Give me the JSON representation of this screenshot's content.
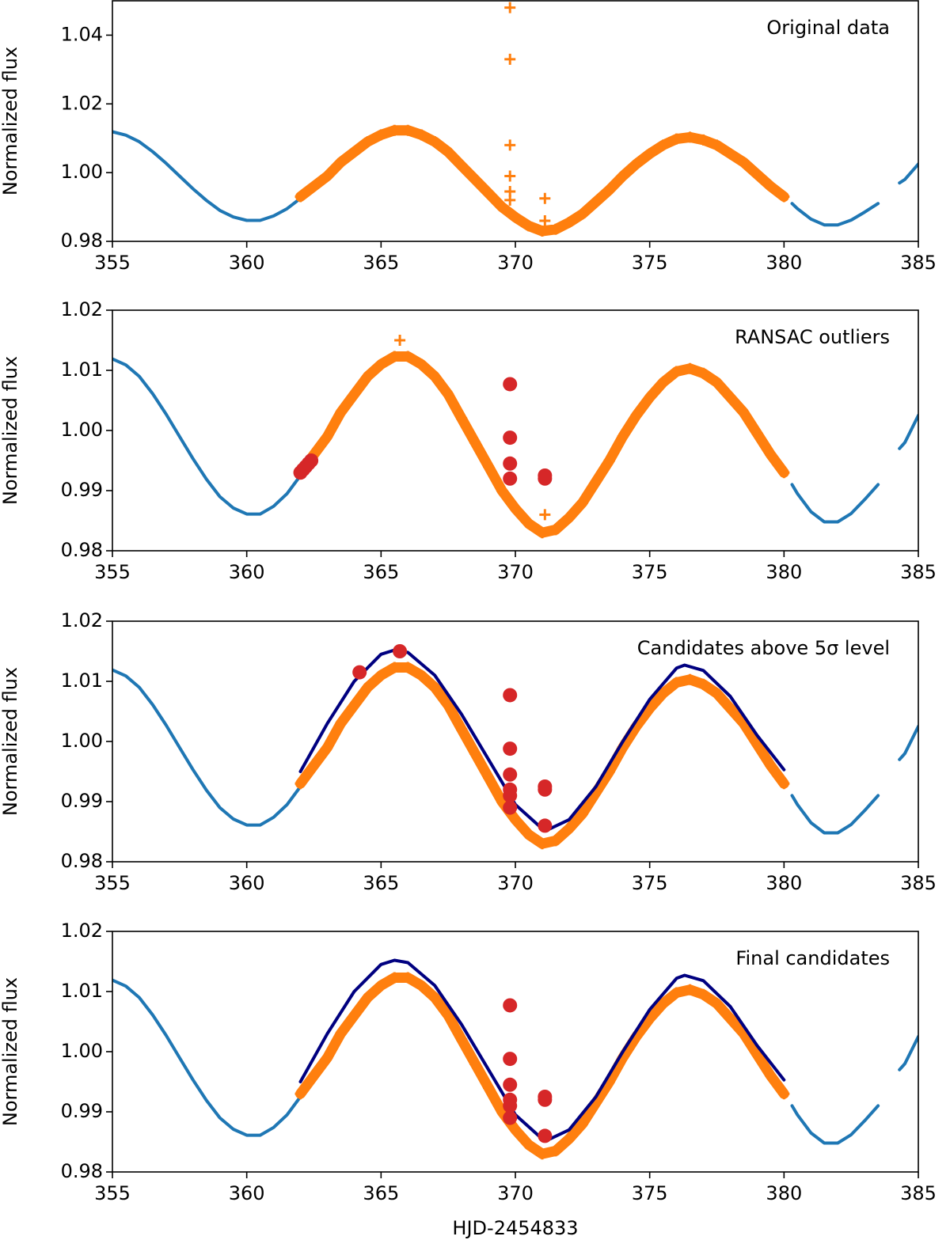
{
  "chart_data": [
    {
      "type": "scatter",
      "title": "Original data",
      "y_label": "Normalized flux",
      "xlim": [
        355,
        385
      ],
      "xticks": [
        355,
        360,
        365,
        370,
        375,
        380,
        385
      ],
      "ylim": [
        0.98,
        1.05
      ],
      "yticks": [
        0.98,
        {
          "value": 1.0,
          "label": "1.00"
        },
        1.02,
        1.04
      ],
      "series": [
        {
          "color": "#1f77b4",
          "marker": "dot",
          "x": [
            355,
            355.5,
            356,
            356.5,
            357,
            357.5,
            358,
            358.5,
            359,
            359.5,
            360,
            360.5,
            361,
            361.5,
            362
          ],
          "values": [
            1.0119,
            1.0109,
            1.009,
            1.0061,
            1.0027,
            0.999,
            0.9953,
            0.9919,
            0.989,
            0.9871,
            0.9861,
            0.9861,
            0.9874,
            0.9895,
            0.9925
          ]
        },
        {
          "color": "#1f77b4",
          "marker": "dot",
          "x": [
            380.3,
            380.5,
            381,
            381.5,
            382,
            382.5,
            383,
            383.5
          ],
          "values": [
            0.991,
            0.9895,
            0.9865,
            0.9848,
            0.9848,
            0.9862,
            0.9885,
            0.991
          ]
        },
        {
          "color": "#1f77b4",
          "marker": "dot",
          "x": [
            384.3,
            384.5,
            385
          ],
          "values": [
            0.997,
            0.998,
            1.0025
          ]
        },
        {
          "color": "#ff7f0e",
          "marker": "plus",
          "x": [
            362,
            362.5,
            363,
            363.5,
            364,
            364.5,
            365,
            365.5,
            366,
            366.5,
            367,
            367.5,
            368,
            368.5,
            369,
            369.5,
            370,
            370.5,
            371,
            371.5,
            372,
            372.5,
            373,
            373.5,
            374,
            374.5,
            375,
            375.5,
            376,
            376.5,
            377,
            377.5,
            378,
            378.5,
            379,
            379.5,
            380
          ],
          "values": [
            0.993,
            0.996,
            0.999,
            1.003,
            1.006,
            1.009,
            1.011,
            1.0123,
            1.0123,
            1.011,
            1.009,
            1.006,
            1.002,
            0.998,
            0.994,
            0.99,
            0.987,
            0.9845,
            0.983,
            0.9835,
            0.9855,
            0.988,
            0.9915,
            0.995,
            0.999,
            1.0025,
            1.0055,
            1.008,
            1.0098,
            1.0103,
            1.0095,
            1.008,
            1.0055,
            1.003,
            0.9995,
            0.996,
            0.993
          ]
        },
        {
          "color": "#ff7f0e",
          "marker": "plus",
          "x": [
            369.8,
            369.8,
            369.8,
            369.8,
            369.8,
            369.8
          ],
          "values": [
            1.048,
            1.033,
            1.008,
            0.999,
            0.9945,
            0.992
          ]
        },
        {
          "color": "#ff7f0e",
          "marker": "plus",
          "x": [
            371.1,
            371.1
          ],
          "values": [
            0.9925,
            0.986
          ]
        }
      ]
    },
    {
      "type": "scatter",
      "title": "RANSAC outliers",
      "y_label": "Normalized flux",
      "xlim": [
        355,
        385
      ],
      "xticks": [
        355,
        360,
        365,
        370,
        375,
        380,
        385
      ],
      "ylim": [
        0.98,
        1.02
      ],
      "yticks": [
        0.98,
        0.99,
        {
          "value": 1.0,
          "label": "1.00"
        },
        1.01,
        1.02
      ],
      "series": [
        {
          "color": "#1f77b4",
          "marker": "dot",
          "x": [
            355,
            355.5,
            356,
            356.5,
            357,
            357.5,
            358,
            358.5,
            359,
            359.5,
            360,
            360.5,
            361,
            361.5,
            362
          ],
          "values": [
            1.0119,
            1.0109,
            1.009,
            1.0061,
            1.0027,
            0.999,
            0.9953,
            0.9919,
            0.989,
            0.9871,
            0.9861,
            0.9861,
            0.9874,
            0.9895,
            0.9925
          ]
        },
        {
          "color": "#1f77b4",
          "marker": "dot",
          "x": [
            380.3,
            380.5,
            381,
            381.5,
            382,
            382.5,
            383,
            383.5
          ],
          "values": [
            0.991,
            0.9895,
            0.9865,
            0.9848,
            0.9848,
            0.9862,
            0.9885,
            0.991
          ]
        },
        {
          "color": "#1f77b4",
          "marker": "dot",
          "x": [
            384.3,
            384.5,
            385
          ],
          "values": [
            0.997,
            0.998,
            1.0025
          ]
        },
        {
          "color": "#ff7f0e",
          "marker": "plus",
          "x": [
            362,
            362.5,
            363,
            363.5,
            364,
            364.5,
            365,
            365.5,
            366,
            366.5,
            367,
            367.5,
            368,
            368.5,
            369,
            369.5,
            370,
            370.5,
            371,
            371.5,
            372,
            372.5,
            373,
            373.5,
            374,
            374.5,
            375,
            375.5,
            376,
            376.5,
            377,
            377.5,
            378,
            378.5,
            379,
            379.5,
            380
          ],
          "values": [
            0.993,
            0.996,
            0.999,
            1.003,
            1.006,
            1.009,
            1.011,
            1.0123,
            1.0123,
            1.011,
            1.009,
            1.006,
            1.002,
            0.998,
            0.994,
            0.99,
            0.987,
            0.9845,
            0.983,
            0.9835,
            0.9855,
            0.988,
            0.9915,
            0.995,
            0.999,
            1.0025,
            1.0055,
            1.008,
            1.0098,
            1.0103,
            1.0095,
            1.008,
            1.0055,
            1.003,
            0.9995,
            0.996,
            0.993
          ]
        },
        {
          "color": "#ff7f0e",
          "marker": "plus",
          "x": [
            365.7,
            371.1
          ],
          "values": [
            1.015,
            0.986
          ]
        },
        {
          "color": "#d62728",
          "marker": "circle",
          "x": [
            362,
            362.1,
            362.2,
            362.3,
            362.4,
            369.8,
            369.8,
            369.8,
            369.8,
            371.1,
            371.1
          ],
          "values": [
            0.993,
            0.9935,
            0.994,
            0.9945,
            0.995,
            1.0077,
            0.9988,
            0.9945,
            0.992,
            0.9925,
            0.992
          ]
        }
      ]
    },
    {
      "type": "scatter",
      "title": "Candidates above 5σ level",
      "y_label": "Normalized flux",
      "xlim": [
        355,
        385
      ],
      "xticks": [
        355,
        360,
        365,
        370,
        375,
        380,
        385
      ],
      "ylim": [
        0.98,
        1.02
      ],
      "yticks": [
        0.98,
        0.99,
        {
          "value": 1.0,
          "label": "1.00"
        },
        1.01,
        1.02
      ],
      "series": [
        {
          "color": "#1f77b4",
          "marker": "dot",
          "x": [
            355,
            355.5,
            356,
            356.5,
            357,
            357.5,
            358,
            358.5,
            359,
            359.5,
            360,
            360.5,
            361,
            361.5,
            362
          ],
          "values": [
            1.0119,
            1.0109,
            1.009,
            1.0061,
            1.0027,
            0.999,
            0.9953,
            0.9919,
            0.989,
            0.9871,
            0.9861,
            0.9861,
            0.9874,
            0.9895,
            0.9925
          ]
        },
        {
          "color": "#1f77b4",
          "marker": "dot",
          "x": [
            380.3,
            380.5,
            381,
            381.5,
            382,
            382.5,
            383,
            383.5
          ],
          "values": [
            0.991,
            0.9895,
            0.9865,
            0.9848,
            0.9848,
            0.9862,
            0.9885,
            0.991
          ]
        },
        {
          "color": "#1f77b4",
          "marker": "dot",
          "x": [
            384.3,
            384.5,
            385
          ],
          "values": [
            0.997,
            0.998,
            1.0025
          ]
        },
        {
          "color": "#ff7f0e",
          "marker": "plus",
          "x": [
            362,
            362.5,
            363,
            363.5,
            364,
            364.5,
            365,
            365.5,
            366,
            366.5,
            367,
            367.5,
            368,
            368.5,
            369,
            369.5,
            370,
            370.5,
            371,
            371.5,
            372,
            372.5,
            373,
            373.5,
            374,
            374.5,
            375,
            375.5,
            376,
            376.5,
            377,
            377.5,
            378,
            378.5,
            379,
            379.5,
            380
          ],
          "values": [
            0.993,
            0.996,
            0.999,
            1.003,
            1.006,
            1.009,
            1.011,
            1.0123,
            1.0123,
            1.011,
            1.009,
            1.006,
            1.002,
            0.998,
            0.994,
            0.99,
            0.987,
            0.9845,
            0.983,
            0.9835,
            0.9855,
            0.988,
            0.9915,
            0.995,
            0.999,
            1.0025,
            1.0055,
            1.008,
            1.0098,
            1.0103,
            1.0095,
            1.008,
            1.0055,
            1.003,
            0.9995,
            0.996,
            0.993
          ]
        },
        {
          "color": "#000080",
          "marker": "none",
          "x": [
            362,
            363,
            364,
            365,
            365.5,
            366,
            367,
            368,
            369,
            370,
            371,
            371.2,
            372,
            373,
            374,
            375,
            376,
            376.3,
            377,
            378,
            379,
            380
          ],
          "values": [
            0.995,
            1.003,
            1.01,
            1.0145,
            1.0152,
            1.0148,
            1.011,
            1.0045,
            0.997,
            0.9895,
            0.9855,
            0.9853,
            0.987,
            0.9925,
            1.0,
            1.007,
            1.0122,
            1.0127,
            1.0118,
            1.0075,
            1.001,
            0.9953
          ]
        },
        {
          "color": "#d62728",
          "marker": "circle",
          "x": [
            364.2,
            365.7,
            369.8,
            369.8,
            369.8,
            369.8,
            369.8,
            369.8,
            371.1,
            371.1,
            371.1
          ],
          "values": [
            1.0115,
            1.015,
            1.0077,
            0.9988,
            0.9945,
            0.992,
            0.991,
            0.989,
            0.9925,
            0.992,
            0.986
          ]
        }
      ]
    },
    {
      "type": "scatter",
      "title": "Final candidates",
      "y_label": "Normalized flux",
      "x_label": "HJD-2454833",
      "xlim": [
        355,
        385
      ],
      "xticks": [
        355,
        360,
        365,
        370,
        375,
        380,
        385
      ],
      "ylim": [
        0.98,
        1.02
      ],
      "yticks": [
        0.98,
        0.99,
        {
          "value": 1.0,
          "label": "1.00"
        },
        1.01,
        1.02
      ],
      "series": [
        {
          "color": "#1f77b4",
          "marker": "dot",
          "x": [
            355,
            355.5,
            356,
            356.5,
            357,
            357.5,
            358,
            358.5,
            359,
            359.5,
            360,
            360.5,
            361,
            361.5,
            362
          ],
          "values": [
            1.0119,
            1.0109,
            1.009,
            1.0061,
            1.0027,
            0.999,
            0.9953,
            0.9919,
            0.989,
            0.9871,
            0.9861,
            0.9861,
            0.9874,
            0.9895,
            0.9925
          ]
        },
        {
          "color": "#1f77b4",
          "marker": "dot",
          "x": [
            380.3,
            380.5,
            381,
            381.5,
            382,
            382.5,
            383,
            383.5
          ],
          "values": [
            0.991,
            0.9895,
            0.9865,
            0.9848,
            0.9848,
            0.9862,
            0.9885,
            0.991
          ]
        },
        {
          "color": "#1f77b4",
          "marker": "dot",
          "x": [
            384.3,
            384.5,
            385
          ],
          "values": [
            0.997,
            0.998,
            1.0025
          ]
        },
        {
          "color": "#ff7f0e",
          "marker": "plus",
          "x": [
            362,
            362.5,
            363,
            363.5,
            364,
            364.5,
            365,
            365.5,
            366,
            366.5,
            367,
            367.5,
            368,
            368.5,
            369,
            369.5,
            370,
            370.5,
            371,
            371.5,
            372,
            372.5,
            373,
            373.5,
            374,
            374.5,
            375,
            375.5,
            376,
            376.5,
            377,
            377.5,
            378,
            378.5,
            379,
            379.5,
            380
          ],
          "values": [
            0.993,
            0.996,
            0.999,
            1.003,
            1.006,
            1.009,
            1.011,
            1.0123,
            1.0123,
            1.011,
            1.009,
            1.006,
            1.002,
            0.998,
            0.994,
            0.99,
            0.987,
            0.9845,
            0.983,
            0.9835,
            0.9855,
            0.988,
            0.9915,
            0.995,
            0.999,
            1.0025,
            1.0055,
            1.008,
            1.0098,
            1.0103,
            1.0095,
            1.008,
            1.0055,
            1.003,
            0.9995,
            0.996,
            0.993
          ]
        },
        {
          "color": "#000080",
          "marker": "none",
          "x": [
            362,
            363,
            364,
            365,
            365.5,
            366,
            367,
            368,
            369,
            370,
            371,
            371.2,
            372,
            373,
            374,
            375,
            376,
            376.3,
            377,
            378,
            379,
            380
          ],
          "values": [
            0.995,
            1.003,
            1.01,
            1.0145,
            1.0152,
            1.0148,
            1.011,
            1.0045,
            0.997,
            0.9895,
            0.9855,
            0.9853,
            0.987,
            0.9925,
            1.0,
            1.007,
            1.0122,
            1.0127,
            1.0118,
            1.0075,
            1.001,
            0.9953
          ]
        },
        {
          "color": "#d62728",
          "marker": "circle",
          "x": [
            369.8,
            369.8,
            369.8,
            369.8,
            369.8,
            369.8,
            371.1,
            371.1,
            371.1
          ],
          "values": [
            1.0077,
            0.9988,
            0.9945,
            0.992,
            0.991,
            0.989,
            0.9925,
            0.992,
            0.986
          ]
        }
      ]
    }
  ]
}
